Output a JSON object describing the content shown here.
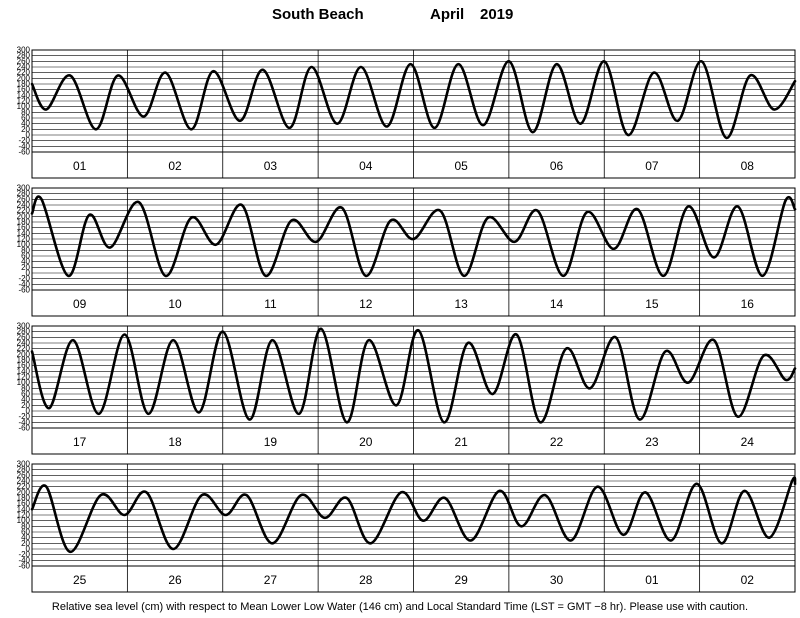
{
  "title": {
    "location": "South Beach",
    "month": "April",
    "year": "2019"
  },
  "caption": "Relative sea level (cm) with respect to Mean Lower Low Water (146 cm) and Local Standard Time (LST = GMT −8 hr). Please use with caution.",
  "y_ticks": [
    "300",
    "280",
    "260",
    "240",
    "220",
    "200",
    "180",
    "160",
    "140",
    "120",
    "100",
    "80",
    "60",
    "40",
    "20",
    "0",
    "-20",
    "-40",
    "-60"
  ],
  "chart_data": [
    {
      "type": "line",
      "ylim": [
        -60,
        300
      ],
      "day_labels": [
        "01",
        "02",
        "03",
        "04",
        "05",
        "06",
        "07",
        "08"
      ],
      "series": [
        {
          "x": [
            0,
            0.15,
            0.4,
            0.67,
            0.9,
            1.17,
            1.4,
            1.67,
            1.9,
            2.18,
            2.42,
            2.7,
            2.93,
            3.2,
            3.45,
            3.72,
            3.97,
            4.22,
            4.47,
            4.73,
            5.0,
            5.25,
            5.5,
            5.75,
            6.0,
            6.25,
            6.52,
            6.77,
            7.02,
            7.28,
            7.53,
            7.78,
            8.0
          ],
          "y": [
            180,
            90,
            210,
            20,
            210,
            65,
            220,
            20,
            225,
            50,
            230,
            25,
            240,
            40,
            240,
            30,
            250,
            25,
            250,
            35,
            260,
            10,
            250,
            40,
            260,
            0,
            220,
            50,
            260,
            -10,
            210,
            90,
            190
          ]
        }
      ]
    },
    {
      "type": "line",
      "ylim": [
        -60,
        300
      ],
      "day_labels": [
        "09",
        "10",
        "11",
        "12",
        "13",
        "14",
        "15",
        "16"
      ],
      "series": [
        {
          "x": [
            0,
            0.1,
            0.38,
            0.6,
            0.82,
            1.12,
            1.4,
            1.67,
            1.93,
            2.2,
            2.45,
            2.72,
            2.98,
            3.25,
            3.5,
            3.76,
            4.0,
            4.28,
            4.53,
            4.78,
            5.06,
            5.3,
            5.57,
            5.82,
            6.1,
            6.35,
            6.62,
            6.88,
            7.15,
            7.4,
            7.66,
            7.9,
            8.0
          ],
          "y": [
            210,
            260,
            -10,
            205,
            90,
            250,
            -10,
            195,
            100,
            240,
            -10,
            185,
            110,
            230,
            -10,
            185,
            120,
            220,
            -10,
            195,
            110,
            220,
            -10,
            215,
            85,
            225,
            -10,
            235,
            55,
            235,
            -10,
            255,
            225
          ]
        }
      ]
    },
    {
      "type": "line",
      "ylim": [
        -60,
        300
      ],
      "day_labels": [
        "17",
        "18",
        "19",
        "20",
        "21",
        "22",
        "23",
        "24"
      ],
      "series": [
        {
          "x": [
            0,
            0.18,
            0.43,
            0.7,
            0.97,
            1.22,
            1.48,
            1.75,
            2.0,
            2.28,
            2.52,
            2.8,
            3.03,
            3.3,
            3.53,
            3.82,
            4.05,
            4.32,
            4.57,
            4.83,
            5.08,
            5.33,
            5.6,
            5.85,
            6.12,
            6.37,
            6.64,
            6.88,
            7.15,
            7.4,
            7.67,
            7.9,
            8.0
          ],
          "y": [
            210,
            10,
            250,
            -10,
            270,
            -10,
            250,
            -5,
            280,
            -30,
            250,
            -10,
            290,
            -40,
            250,
            20,
            285,
            -40,
            240,
            60,
            270,
            -40,
            220,
            80,
            260,
            -30,
            210,
            100,
            250,
            -20,
            195,
            110,
            150
          ]
        }
      ]
    },
    {
      "type": "line",
      "ylim": [
        -60,
        300
      ],
      "day_labels": [
        "25",
        "26",
        "27",
        "28",
        "29",
        "30",
        "01",
        "02"
      ],
      "series": [
        {
          "x": [
            0,
            0.15,
            0.4,
            0.72,
            0.97,
            1.2,
            1.48,
            1.78,
            2.03,
            2.25,
            2.52,
            2.82,
            3.07,
            3.3,
            3.55,
            3.87,
            4.1,
            4.33,
            4.6,
            4.9,
            5.13,
            5.38,
            5.65,
            5.93,
            6.2,
            6.43,
            6.7,
            6.97,
            7.23,
            7.47,
            7.73,
            7.97,
            8.0
          ],
          "y": [
            140,
            220,
            -10,
            190,
            120,
            200,
            0,
            190,
            120,
            190,
            20,
            190,
            110,
            180,
            20,
            200,
            100,
            180,
            30,
            205,
            80,
            190,
            30,
            220,
            50,
            200,
            30,
            230,
            20,
            205,
            40,
            240,
            230
          ]
        }
      ]
    }
  ]
}
